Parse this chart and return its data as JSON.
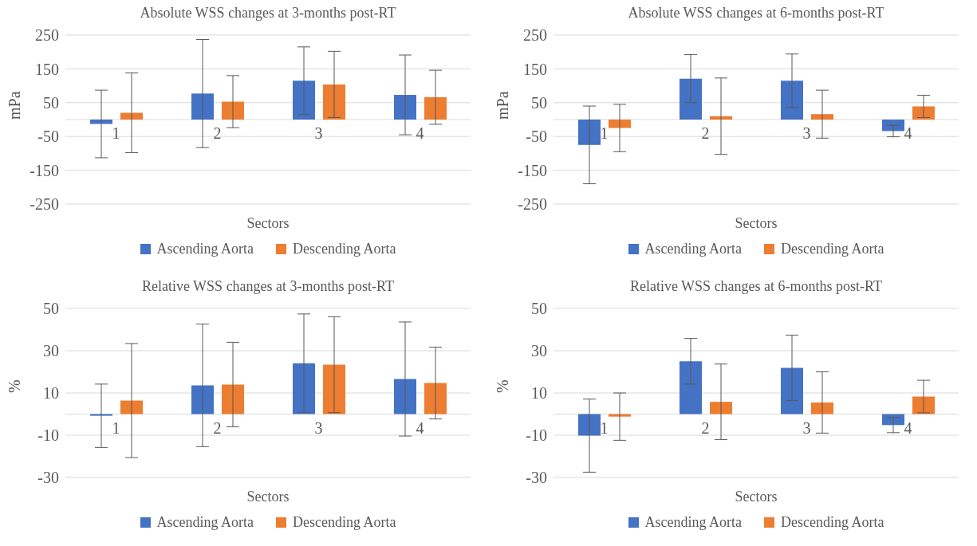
{
  "chart_data": [
    {
      "type": "bar",
      "title": "Absolute WSS changes at 3-months post-RT",
      "xlabel": "Sectors",
      "ylabel": "mPa",
      "categories": [
        "1",
        "2",
        "3",
        "4"
      ],
      "series": [
        {
          "name": "Ascending Aorta",
          "color": "#4472c4",
          "values": [
            -13,
            77,
            115,
            73
          ],
          "errors": [
            100,
            160,
            100,
            118
          ]
        },
        {
          "name": "Descending Aorta",
          "color": "#ed7d31",
          "values": [
            20,
            53,
            104,
            66
          ],
          "errors": [
            118,
            77,
            98,
            80
          ]
        }
      ],
      "ylim": [
        -250,
        250
      ],
      "yticks": [
        -250,
        -150,
        -50,
        50,
        150,
        250
      ],
      "grid": "y",
      "legend": "bottom"
    },
    {
      "type": "bar",
      "title": "Absolute WSS changes at 6-months post-RT",
      "xlabel": "Sectors",
      "ylabel": "mPa",
      "categories": [
        "1",
        "2",
        "3",
        "4"
      ],
      "series": [
        {
          "name": "Ascending Aorta",
          "color": "#4472c4",
          "values": [
            -75,
            121,
            115,
            -34
          ],
          "errors": [
            115,
            71,
            79,
            17
          ]
        },
        {
          "name": "Descending Aorta",
          "color": "#ed7d31",
          "values": [
            -25,
            10,
            16,
            39
          ],
          "errors": [
            70,
            113,
            71,
            33
          ]
        }
      ],
      "ylim": [
        -250,
        250
      ],
      "yticks": [
        -250,
        -150,
        -50,
        50,
        150,
        250
      ],
      "grid": "y",
      "legend": "bottom"
    },
    {
      "type": "bar",
      "title": "Relative WSS changes at 3-months post-RT",
      "xlabel": "Sectors",
      "ylabel": "%",
      "categories": [
        "1",
        "2",
        "3",
        "4"
      ],
      "series": [
        {
          "name": "Ascending Aorta",
          "color": "#4472c4",
          "values": [
            -0.8,
            13.6,
            24.1,
            16.6
          ],
          "errors": [
            15,
            29,
            23.3,
            27
          ]
        },
        {
          "name": "Descending Aorta",
          "color": "#ed7d31",
          "values": [
            6.4,
            14,
            23.4,
            14.7
          ],
          "errors": [
            27,
            20,
            22.7,
            17
          ]
        }
      ],
      "ylim": [
        -30,
        50
      ],
      "yticks": [
        -30,
        -10,
        10,
        30,
        50
      ],
      "grid": "y",
      "legend": "bottom"
    },
    {
      "type": "bar",
      "title": "Relative WSS changes at 6-months post-RT",
      "xlabel": "Sectors",
      "ylabel": "%",
      "categories": [
        "1",
        "2",
        "3",
        "4"
      ],
      "series": [
        {
          "name": "Ascending Aorta",
          "color": "#4472c4",
          "values": [
            -10.2,
            25,
            21.9,
            -5.2
          ],
          "errors": [
            17.3,
            10.8,
            15.5,
            3.6
          ]
        },
        {
          "name": "Descending Aorta",
          "color": "#ed7d31",
          "values": [
            -1.2,
            5.8,
            5.5,
            8.3
          ],
          "errors": [
            11.2,
            17.9,
            14.5,
            7.7
          ]
        }
      ],
      "ylim": [
        -30,
        50
      ],
      "yticks": [
        -30,
        -10,
        10,
        30,
        50
      ],
      "grid": "y",
      "legend": "bottom"
    }
  ]
}
